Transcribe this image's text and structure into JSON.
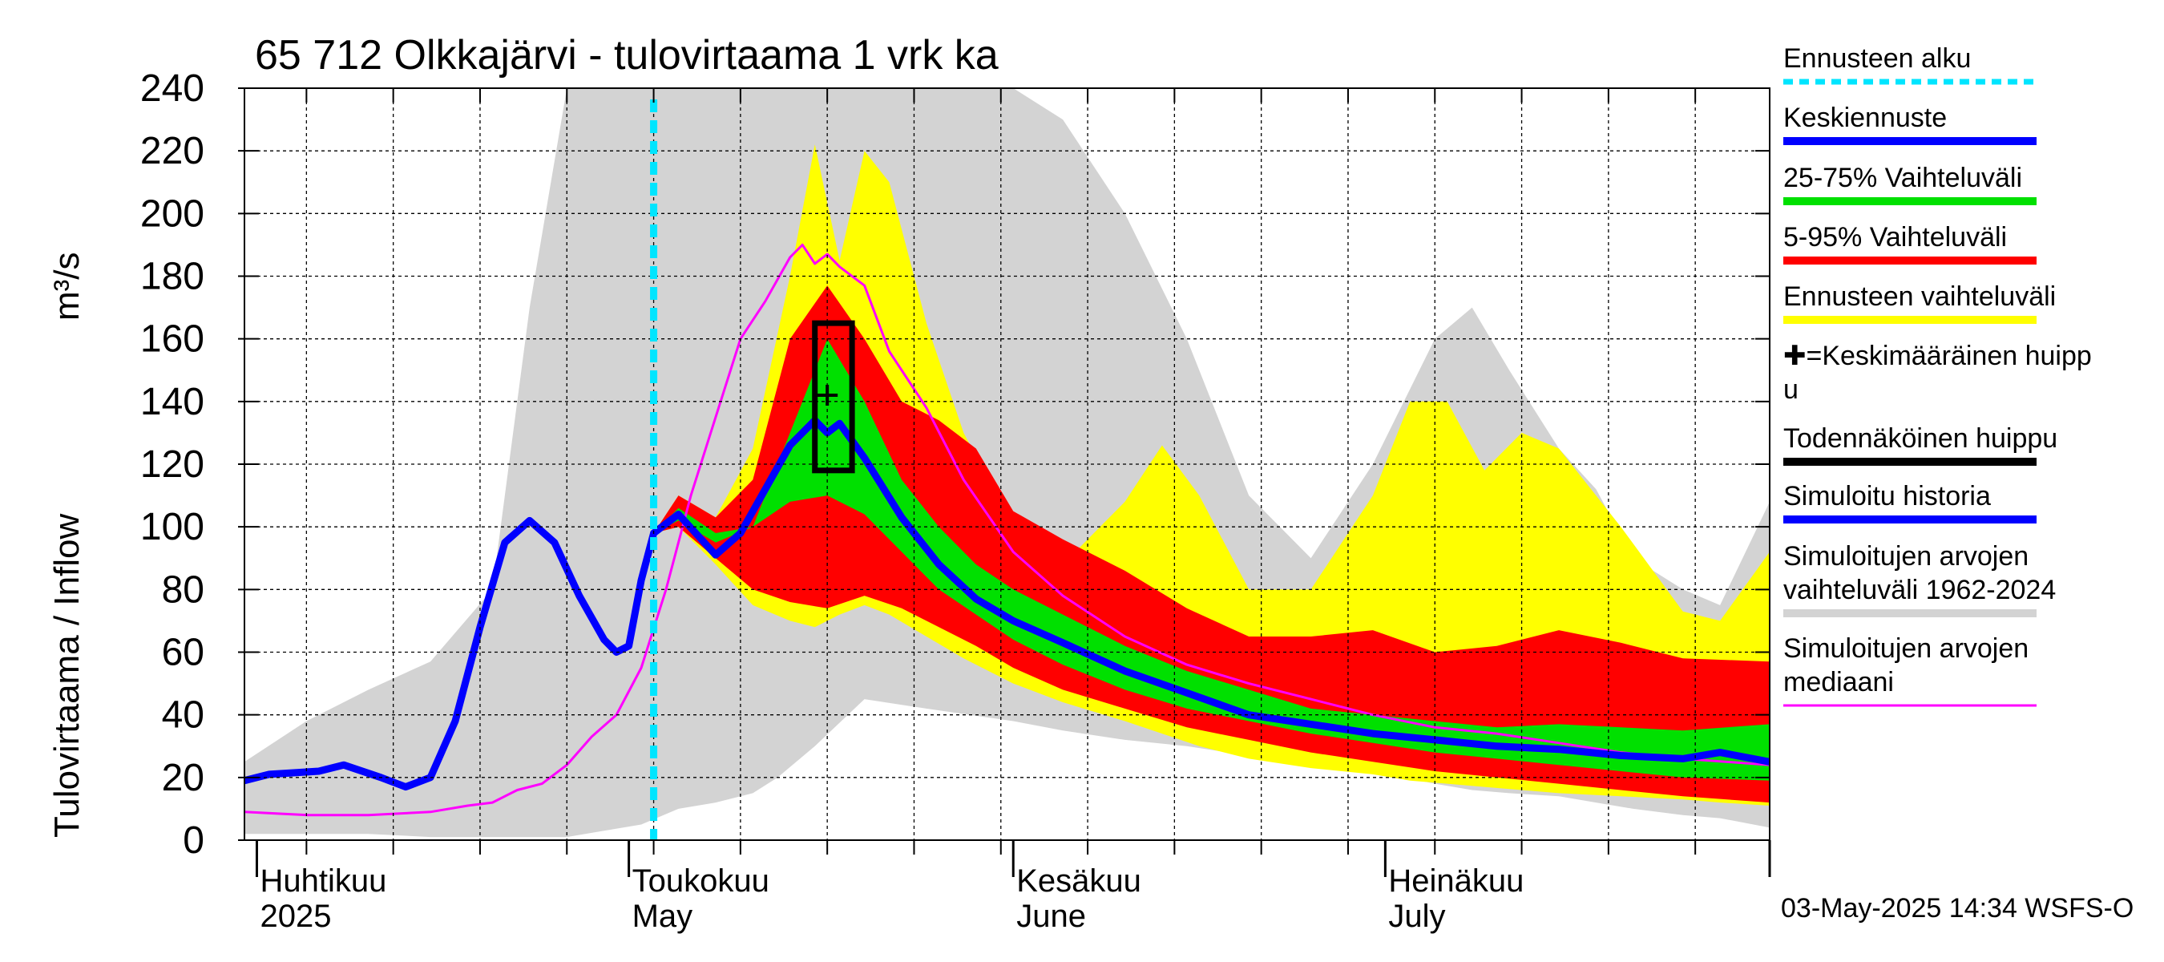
{
  "chart_data": {
    "type": "area",
    "title": "65 712 Olkkajärvi - tulovirtaama 1 vrk ka",
    "ylabel_left": "Tulovirtaama / Inflow",
    "ylabel_unit": "m³/s",
    "ylim": [
      0,
      240
    ],
    "yticks": [
      0,
      20,
      40,
      60,
      80,
      100,
      120,
      140,
      160,
      180,
      200,
      220,
      240
    ],
    "grid": true,
    "x_unit": "date",
    "xlim": [
      "2025-03-31",
      "2025-08-01"
    ],
    "month_labels": [
      {
        "fi": "Huhtikuu",
        "en": "2025",
        "date": "2025-04-01"
      },
      {
        "fi": "Toukokuu",
        "en": "May",
        "date": "2025-05-01"
      },
      {
        "fi": "Kesäkuu",
        "en": "June",
        "date": "2025-06-01"
      },
      {
        "fi": "Heinäkuu",
        "en": "July",
        "date": "2025-07-01"
      }
    ],
    "forecast_start": "2025-05-03",
    "probable_peak_box": {
      "x_from": "2025-05-16",
      "x_to": "2025-05-19",
      "y_from": 118,
      "y_to": 165
    },
    "mean_peak": {
      "x": "2025-05-17",
      "y": 142
    },
    "series": [
      {
        "name": "Simuloitujen arvojen vaihteluväli 1962-2024",
        "kind": "band",
        "color": "#d3d3d3",
        "x": [
          "2025-03-31",
          "2025-04-05",
          "2025-04-10",
          "2025-04-15",
          "2025-04-20",
          "2025-04-23",
          "2025-04-26",
          "2025-04-29",
          "2025-05-02",
          "2025-05-05",
          "2025-05-08",
          "2025-05-11",
          "2025-05-13",
          "2025-05-16",
          "2025-05-20",
          "2025-05-25",
          "2025-06-01",
          "2025-06-05",
          "2025-06-10",
          "2025-06-15",
          "2025-06-20",
          "2025-06-25",
          "2025-06-30",
          "2025-07-05",
          "2025-07-08",
          "2025-07-11",
          "2025-07-15",
          "2025-07-18",
          "2025-07-21",
          "2025-07-25",
          "2025-07-28",
          "2025-08-01"
        ],
        "upper": [
          25,
          38,
          48,
          57,
          80,
          170,
          240,
          240,
          240,
          240,
          240,
          240,
          240,
          240,
          240,
          240,
          240,
          230,
          200,
          160,
          110,
          90,
          120,
          160,
          170,
          150,
          125,
          112,
          90,
          80,
          75,
          108
        ],
        "lower": [
          2,
          2,
          2,
          1,
          1,
          1,
          1,
          3,
          5,
          10,
          12,
          15,
          20,
          30,
          45,
          42,
          38,
          35,
          32,
          30,
          27,
          25,
          22,
          18,
          16,
          15,
          14,
          12,
          10,
          8,
          7,
          4
        ]
      },
      {
        "name": "Ennusteen vaihteluväli",
        "kind": "band",
        "color": "#ffff00",
        "x": [
          "2025-05-03",
          "2025-05-05",
          "2025-05-08",
          "2025-05-11",
          "2025-05-14",
          "2025-05-16",
          "2025-05-18",
          "2025-05-20",
          "2025-05-22",
          "2025-05-25",
          "2025-05-28",
          "2025-06-01",
          "2025-06-05",
          "2025-06-10",
          "2025-06-13",
          "2025-06-16",
          "2025-06-20",
          "2025-06-25",
          "2025-06-30",
          "2025-07-03",
          "2025-07-06",
          "2025-07-09",
          "2025-07-12",
          "2025-07-15",
          "2025-07-20",
          "2025-07-25",
          "2025-07-28",
          "2025-08-01"
        ],
        "upper": [
          98,
          110,
          103,
          125,
          180,
          222,
          185,
          220,
          210,
          165,
          130,
          100,
          88,
          108,
          126,
          110,
          80,
          80,
          110,
          140,
          140,
          118,
          130,
          125,
          100,
          73,
          70,
          92
        ],
        "lower": [
          98,
          100,
          88,
          75,
          70,
          68,
          72,
          75,
          72,
          65,
          58,
          50,
          44,
          38,
          34,
          30,
          26,
          23,
          21,
          19,
          18,
          17,
          16,
          15,
          14,
          13,
          12,
          11
        ]
      },
      {
        "name": "5-95% Vaihteluväli",
        "kind": "band",
        "color": "#ff0000",
        "x": [
          "2025-05-03",
          "2025-05-05",
          "2025-05-08",
          "2025-05-11",
          "2025-05-14",
          "2025-05-17",
          "2025-05-20",
          "2025-05-23",
          "2025-05-26",
          "2025-05-29",
          "2025-06-01",
          "2025-06-05",
          "2025-06-10",
          "2025-06-15",
          "2025-06-20",
          "2025-06-25",
          "2025-06-30",
          "2025-07-05",
          "2025-07-10",
          "2025-07-15",
          "2025-07-20",
          "2025-07-25",
          "2025-08-01"
        ],
        "upper": [
          98,
          110,
          103,
          115,
          160,
          177,
          160,
          140,
          134,
          125,
          105,
          96,
          86,
          74,
          65,
          65,
          67,
          60,
          62,
          67,
          63,
          58,
          57
        ],
        "lower": [
          98,
          100,
          90,
          80,
          76,
          74,
          78,
          74,
          68,
          62,
          55,
          48,
          42,
          36,
          32,
          28,
          25,
          22,
          20,
          18,
          16,
          14,
          12
        ]
      },
      {
        "name": "25-75% Vaihteluväli",
        "kind": "band",
        "color": "#00e000",
        "x": [
          "2025-05-03",
          "2025-05-05",
          "2025-05-08",
          "2025-05-11",
          "2025-05-14",
          "2025-05-17",
          "2025-05-20",
          "2025-05-23",
          "2025-05-26",
          "2025-05-29",
          "2025-06-01",
          "2025-06-05",
          "2025-06-10",
          "2025-06-15",
          "2025-06-20",
          "2025-06-25",
          "2025-06-30",
          "2025-07-05",
          "2025-07-10",
          "2025-07-15",
          "2025-07-20",
          "2025-07-25",
          "2025-08-01"
        ],
        "upper": [
          98,
          106,
          98,
          100,
          130,
          160,
          140,
          115,
          100,
          88,
          80,
          72,
          62,
          54,
          48,
          42,
          40,
          38,
          36,
          37,
          36,
          35,
          37
        ],
        "lower": [
          98,
          102,
          95,
          100,
          108,
          110,
          104,
          92,
          80,
          72,
          64,
          56,
          48,
          42,
          38,
          34,
          31,
          28,
          26,
          24,
          22,
          20,
          19
        ]
      },
      {
        "name": "Simuloitujen arvojen mediaani",
        "kind": "line",
        "color": "#ff00ff",
        "x": [
          "2025-03-31",
          "2025-04-05",
          "2025-04-10",
          "2025-04-15",
          "2025-04-18",
          "2025-04-20",
          "2025-04-22",
          "2025-04-24",
          "2025-04-26",
          "2025-04-28",
          "2025-04-30",
          "2025-05-02",
          "2025-05-04",
          "2025-05-06",
          "2025-05-08",
          "2025-05-10",
          "2025-05-12",
          "2025-05-14",
          "2025-05-15",
          "2025-05-16",
          "2025-05-17",
          "2025-05-18",
          "2025-05-20",
          "2025-05-22",
          "2025-05-25",
          "2025-05-28",
          "2025-06-01",
          "2025-06-05",
          "2025-06-10",
          "2025-06-15",
          "2025-06-20",
          "2025-06-25",
          "2025-06-30",
          "2025-07-05",
          "2025-07-10",
          "2025-07-15",
          "2025-07-20",
          "2025-07-25",
          "2025-08-01"
        ],
        "values": [
          9,
          8,
          8,
          9,
          11,
          12,
          16,
          18,
          24,
          33,
          40,
          55,
          80,
          110,
          135,
          160,
          172,
          186,
          190,
          184,
          187,
          183,
          177,
          156,
          138,
          115,
          92,
          78,
          65,
          56,
          50,
          45,
          40,
          36,
          34,
          31,
          28,
          26,
          24
        ]
      },
      {
        "name": "Keskiennuste",
        "kind": "line",
        "color": "#0000ff",
        "x": [
          "2025-05-03",
          "2025-05-05",
          "2025-05-08",
          "2025-05-10",
          "2025-05-12",
          "2025-05-14",
          "2025-05-16",
          "2025-05-17",
          "2025-05-18",
          "2025-05-20",
          "2025-05-23",
          "2025-05-26",
          "2025-05-29",
          "2025-06-01",
          "2025-06-05",
          "2025-06-10",
          "2025-06-15",
          "2025-06-20",
          "2025-06-25",
          "2025-06-30",
          "2025-07-05",
          "2025-07-10",
          "2025-07-15",
          "2025-07-20",
          "2025-07-25",
          "2025-07-28",
          "2025-08-01"
        ],
        "values": [
          98,
          104,
          91,
          98,
          112,
          126,
          134,
          130,
          133,
          122,
          103,
          88,
          77,
          70,
          63,
          54,
          47,
          40,
          37,
          34,
          32,
          30,
          29,
          27,
          26,
          28,
          25
        ]
      },
      {
        "name": "Simuloitu historia",
        "kind": "line",
        "color": "#0000ff",
        "x": [
          "2025-03-31",
          "2025-04-02",
          "2025-04-06",
          "2025-04-08",
          "2025-04-11",
          "2025-04-13",
          "2025-04-15",
          "2025-04-17",
          "2025-04-19",
          "2025-04-21",
          "2025-04-23",
          "2025-04-25",
          "2025-04-27",
          "2025-04-29",
          "2025-04-30",
          "2025-05-01",
          "2025-05-02",
          "2025-05-03"
        ],
        "values": [
          19,
          21,
          22,
          24,
          20,
          17,
          20,
          38,
          68,
          95,
          102,
          95,
          78,
          64,
          60,
          62,
          83,
          98
        ]
      }
    ],
    "legend": [
      {
        "label": "Ennusteen alku",
        "color": "#00e5ff",
        "style": "dashed"
      },
      {
        "label": "Keskiennuste",
        "color": "#0000ff",
        "style": "line"
      },
      {
        "label": "25-75% Vaihteluväli",
        "color": "#00e000",
        "style": "line"
      },
      {
        "label": "5-95% Vaihteluväli",
        "color": "#ff0000",
        "style": "line"
      },
      {
        "label": "Ennusteen vaihteluväli",
        "color": "#ffff00",
        "style": "line"
      },
      {
        "label": "✚=Keskimääräinen huippu",
        "color": "",
        "style": "none"
      },
      {
        "label": "Todennäköinen huippu",
        "color": "#000000",
        "style": "line"
      },
      {
        "label": "Simuloitu historia",
        "color": "#0000ff",
        "style": "line"
      },
      {
        "label": "Simuloitujen arvojen vaihteluväli 1962-2024",
        "color": "#d3d3d3",
        "style": "line"
      },
      {
        "label": "Simuloitujen arvojen mediaani",
        "color": "#ff00ff",
        "style": "thin"
      }
    ],
    "timestamp": "03-May-2025 14:34 WSFS-O"
  }
}
